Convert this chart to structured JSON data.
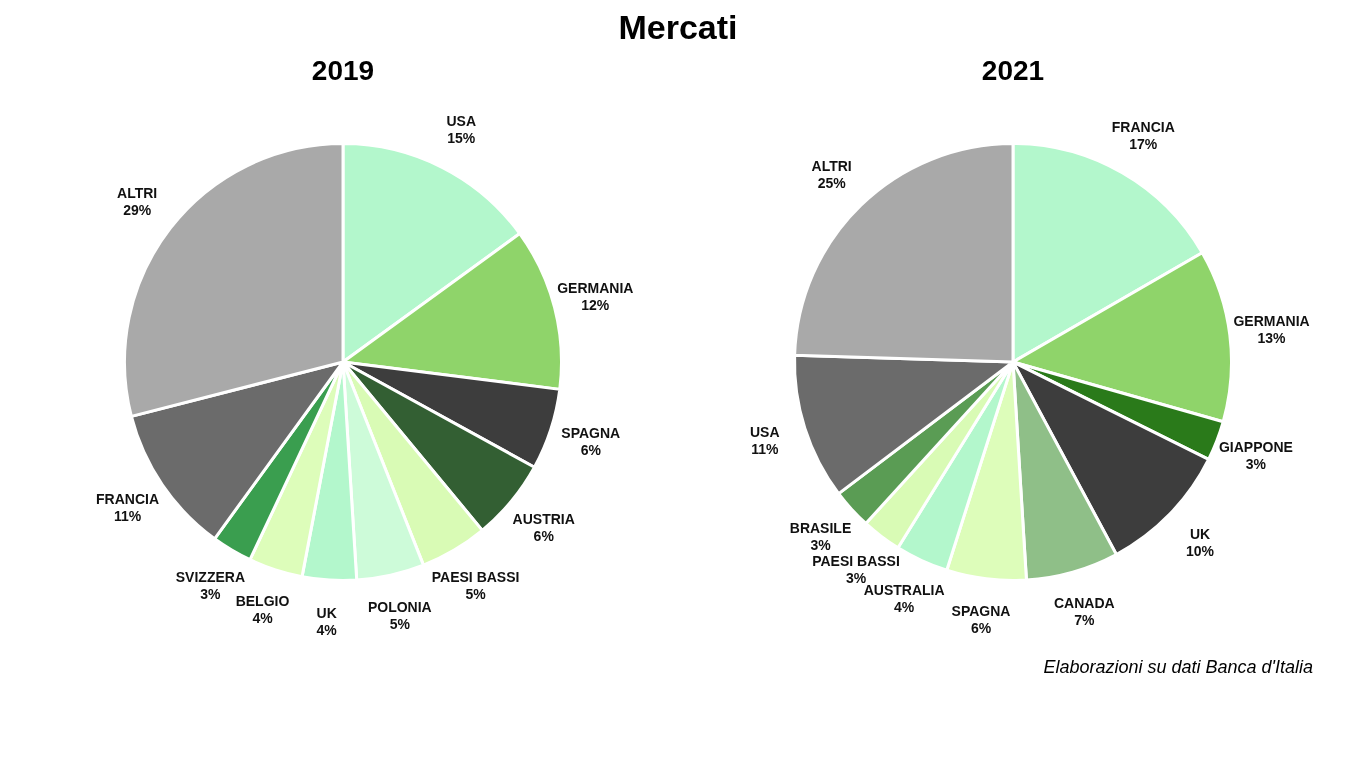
{
  "chart_data": [
    {
      "type": "pie",
      "title": "Mercati",
      "subtitle": "2019",
      "categories": [
        "USA",
        "GERMANIA",
        "SPAGNA",
        "AUSTRIA",
        "PAESI BASSI",
        "POLONIA",
        "UK",
        "BELGIO",
        "SVIZZERA",
        "FRANCIA",
        "ALTRI"
      ],
      "values": [
        15,
        12,
        6,
        6,
        5,
        5,
        4,
        4,
        3,
        11,
        29
      ],
      "value_labels": [
        "15%",
        "12%",
        "6%",
        "6%",
        "5%",
        "5%",
        "4%",
        "4%",
        "3%",
        "11%",
        "29%"
      ],
      "colors": [
        "#b3f7cc",
        "#8fd46a",
        "#3d3d3d",
        "#335f33",
        "#d9fbb5",
        "#cdfbd9",
        "#b3f7cc",
        "#ddfdba",
        "#3a9e4f",
        "#6b6b6b",
        "#a9a9a9"
      ],
      "legend": false
    },
    {
      "type": "pie",
      "subtitle": "2021",
      "categories": [
        "FRANCIA",
        "GERMANIA",
        "GIAPPONE",
        "UK",
        "CANADA",
        "SPAGNA",
        "AUSTRALIA",
        "PAESI BASSI",
        "BRASILE",
        "USA",
        "ALTRI"
      ],
      "values": [
        17,
        13,
        3,
        10,
        7,
        6,
        4,
        3,
        3,
        11,
        25
      ],
      "value_labels": [
        "17%",
        "13%",
        "3%",
        "10%",
        "7%",
        "6%",
        "4%",
        "3%",
        "3%",
        "11%",
        "25%"
      ],
      "colors": [
        "#b3f7cc",
        "#8fd46a",
        "#2a7a1a",
        "#3d3d3d",
        "#8fbf88",
        "#ddfdba",
        "#b3f7cc",
        "#d9fbb5",
        "#5a9c54",
        "#6b6b6b",
        "#a9a9a9"
      ],
      "annotations": [
        "Elaborazioni su dati Banca d'Italia"
      ],
      "legend": false
    }
  ]
}
